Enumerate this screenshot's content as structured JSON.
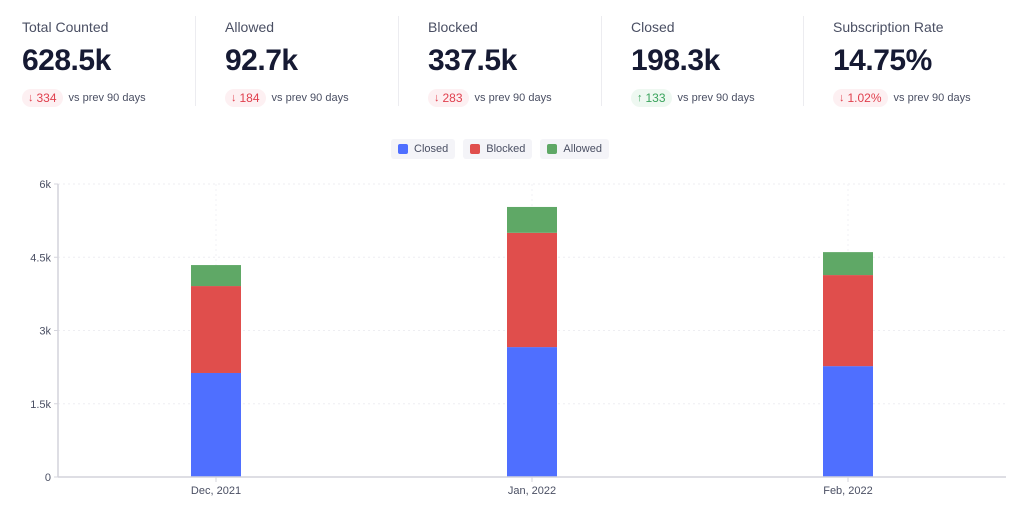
{
  "stats": [
    {
      "label": "Total Counted",
      "value": "628.5k",
      "delta": "334",
      "direction": "down",
      "comparison": "vs prev 90 days"
    },
    {
      "label": "Allowed",
      "value": "92.7k",
      "delta": "184",
      "direction": "down",
      "comparison": "vs prev 90 days"
    },
    {
      "label": "Blocked",
      "value": "337.5k",
      "delta": "283",
      "direction": "down",
      "comparison": "vs prev 90 days"
    },
    {
      "label": "Closed",
      "value": "198.3k",
      "delta": "133",
      "direction": "up",
      "comparison": "vs prev 90 days"
    },
    {
      "label": "Subscription Rate",
      "value": "14.75%",
      "delta": "1.02%",
      "direction": "down",
      "comparison": "vs prev 90 days"
    }
  ],
  "icons": {
    "down": "arrow-down-icon",
    "up": "arrow-up-icon"
  },
  "chart_data": {
    "type": "bar",
    "stacked": true,
    "categories": [
      "Dec, 2021",
      "Jan, 2022",
      "Feb, 2022"
    ],
    "series": [
      {
        "name": "Closed",
        "color": "#4f6fff",
        "values": [
          2130,
          2660,
          2270
        ]
      },
      {
        "name": "Blocked",
        "color": "#e04e4c",
        "values": [
          1780,
          2340,
          1865
        ]
      },
      {
        "name": "Allowed",
        "color": "#5fa866",
        "values": [
          430,
          530,
          470
        ]
      }
    ],
    "ylim": [
      0,
      6000
    ],
    "yticks": [
      "0",
      "1.5k",
      "3k",
      "4.5k",
      "6k"
    ],
    "ytick_values": [
      0,
      1500,
      3000,
      4500,
      6000
    ],
    "grid": true,
    "legend": "top-center",
    "title": "",
    "xlabel": "",
    "ylabel": ""
  }
}
